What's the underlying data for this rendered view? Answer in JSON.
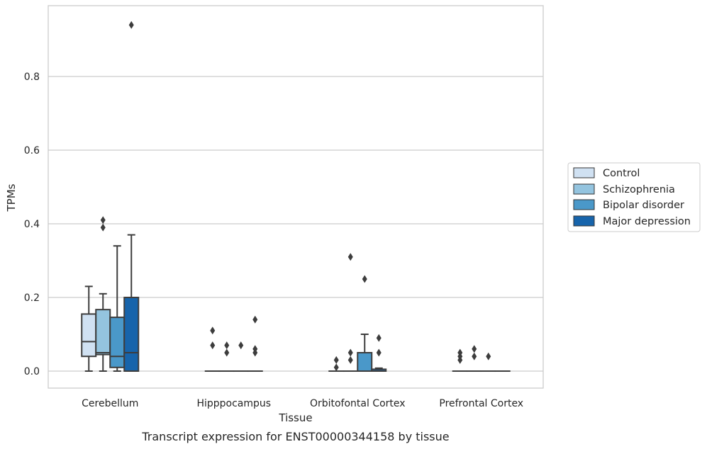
{
  "chart_data": {
    "type": "box",
    "caption": "Transcript expression for ENST00000344158 by tissue",
    "xlabel": "Tissue",
    "ylabel": "TPMs",
    "ylim": [
      -0.045,
      0.99
    ],
    "yticks": [
      0.0,
      0.2,
      0.4,
      0.6,
      0.8
    ],
    "ytick_labels": [
      "0.0",
      "0.2",
      "0.4",
      "0.6",
      "0.8"
    ],
    "grid": "horizontal",
    "legend_position": "right",
    "categories": [
      "Cerebellum",
      "Hipppocampus",
      "Orbitofontal Cortex",
      "Prefrontal Cortex"
    ],
    "series": [
      {
        "name": "Control",
        "color": "#d0e1f2",
        "boxes": [
          {
            "q1": 0.04,
            "median": 0.08,
            "q3": 0.155,
            "whislo": 0.0,
            "whishi": 0.23,
            "fliers": []
          },
          {
            "q1": 0.0,
            "median": 0.0,
            "q3": 0.0,
            "whislo": 0.0,
            "whishi": 0.0,
            "fliers": [
              0.07,
              0.11
            ]
          },
          {
            "q1": 0.0,
            "median": 0.0,
            "q3": 0.0,
            "whislo": 0.0,
            "whishi": 0.0,
            "fliers": [
              0.01,
              0.03
            ]
          },
          {
            "q1": 0.0,
            "median": 0.0,
            "q3": 0.0,
            "whislo": 0.0,
            "whishi": 0.0,
            "fliers": [
              0.03,
              0.04,
              0.05
            ]
          }
        ]
      },
      {
        "name": "Schizophrenia",
        "color": "#94c4df",
        "boxes": [
          {
            "q1": 0.045,
            "median": 0.05,
            "q3": 0.167,
            "whislo": 0.0,
            "whishi": 0.21,
            "fliers": [
              0.39,
              0.41
            ]
          },
          {
            "q1": 0.0,
            "median": 0.0,
            "q3": 0.0,
            "whislo": 0.0,
            "whishi": 0.0,
            "fliers": [
              0.05,
              0.07
            ]
          },
          {
            "q1": 0.0,
            "median": 0.0,
            "q3": 0.0,
            "whislo": 0.0,
            "whishi": 0.0,
            "fliers": [
              0.03,
              0.05,
              0.31
            ]
          },
          {
            "q1": 0.0,
            "median": 0.0,
            "q3": 0.0,
            "whislo": 0.0,
            "whishi": 0.0,
            "fliers": [
              0.04,
              0.06
            ]
          }
        ]
      },
      {
        "name": "Bipolar disorder",
        "color": "#4a98c9",
        "boxes": [
          {
            "q1": 0.01,
            "median": 0.04,
            "q3": 0.146,
            "whislo": 0.0,
            "whishi": 0.34,
            "fliers": []
          },
          {
            "q1": 0.0,
            "median": 0.0,
            "q3": 0.0,
            "whislo": 0.0,
            "whishi": 0.0,
            "fliers": [
              0.07
            ]
          },
          {
            "q1": 0.0,
            "median": 0.0,
            "q3": 0.05,
            "whislo": 0.0,
            "whishi": 0.1,
            "fliers": [
              0.25
            ]
          },
          {
            "q1": 0.0,
            "median": 0.0,
            "q3": 0.0,
            "whislo": 0.0,
            "whishi": 0.0,
            "fliers": [
              0.04
            ]
          }
        ]
      },
      {
        "name": "Major depression",
        "color": "#1764ab",
        "boxes": [
          {
            "q1": 0.0,
            "median": 0.05,
            "q3": 0.2,
            "whislo": 0.0,
            "whishi": 0.37,
            "fliers": [
              0.94
            ]
          },
          {
            "q1": 0.0,
            "median": 0.0,
            "q3": 0.0,
            "whislo": 0.0,
            "whishi": 0.0,
            "fliers": [
              0.05,
              0.06,
              0.14
            ]
          },
          {
            "q1": 0.0,
            "median": 0.0,
            "q3": 0.005,
            "whislo": 0.0,
            "whishi": 0.008,
            "fliers": [
              0.05,
              0.09
            ]
          },
          {
            "q1": 0.0,
            "median": 0.0,
            "q3": 0.0,
            "whislo": 0.0,
            "whishi": 0.0,
            "fliers": []
          }
        ]
      }
    ]
  }
}
